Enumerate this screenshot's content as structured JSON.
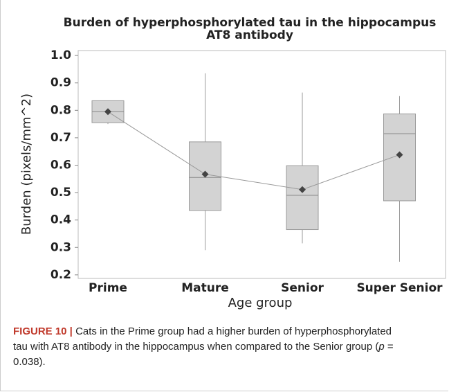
{
  "chart_data": {
    "type": "box",
    "title": "Burden of hyperphosphorylated tau in the hippocampus",
    "subtitle": "AT8 antibody",
    "x_label": "Age group",
    "y_label": "Burden (pixels/mm^2)",
    "categories": [
      "Prime",
      "Mature",
      "Senior",
      "Super Senior"
    ],
    "boxes": [
      {
        "min": 0.75,
        "q1": 0.755,
        "median": 0.795,
        "q3": 0.835,
        "max": 0.835,
        "mean": 0.795
      },
      {
        "min": 0.29,
        "q1": 0.435,
        "median": 0.555,
        "q3": 0.685,
        "max": 0.935,
        "mean": 0.567
      },
      {
        "min": 0.315,
        "q1": 0.365,
        "median": 0.49,
        "q3": 0.598,
        "max": 0.865,
        "mean": 0.511
      },
      {
        "min": 0.248,
        "q1": 0.47,
        "median": 0.715,
        "q3": 0.787,
        "max": 0.852,
        "mean": 0.638
      }
    ],
    "box_color": "#d3d3d3",
    "mean_color": "#444444",
    "ylim": [
      0.187,
      1.018
    ],
    "yticks": [
      0.2,
      0.3,
      0.4,
      0.5,
      0.6,
      0.7,
      0.8,
      0.9,
      {
        "value": 1,
        "label": "1.0"
      }
    ]
  },
  "caption": {
    "label": "FIGURE 10 |",
    "text": "Cats in the Prime group had a higher burden of hyperphosphorylated tau with AT8 antibody in the hippocampus when compared to the Senior group (",
    "italic": "p",
    "end": " = 0.038)."
  }
}
